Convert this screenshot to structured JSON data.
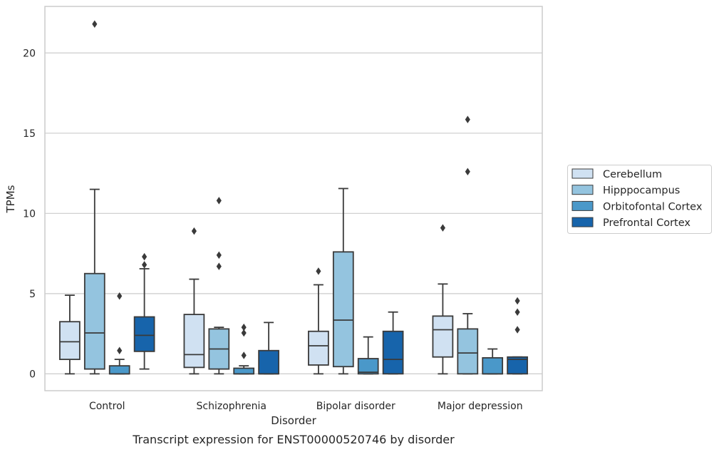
{
  "chart_data": {
    "type": "box",
    "caption": "Transcript expression for ENST00000520746 by disorder",
    "xlabel": "Disorder",
    "ylabel": "TPMs",
    "ylim": [
      -1.05,
      22.9
    ],
    "yticks": [
      0,
      5,
      10,
      15,
      20
    ],
    "grid": "horizontal",
    "legend_position": "right",
    "categories": [
      "Control",
      "Schizophrenia",
      "Bipolar disorder",
      "Major depression"
    ],
    "series": [
      {
        "name": "Cerebellum",
        "color": "#d0e1f2",
        "boxes": [
          {
            "whislo": 0,
            "q1": 0.9,
            "med": 2.0,
            "q3": 3.25,
            "whishi": 4.9,
            "fliers": []
          },
          {
            "whislo": 0,
            "q1": 0.4,
            "med": 1.2,
            "q3": 3.7,
            "whishi": 5.9,
            "fliers": [
              8.9
            ]
          },
          {
            "whislo": 0,
            "q1": 0.55,
            "med": 1.75,
            "q3": 2.65,
            "whishi": 5.55,
            "fliers": [
              6.4
            ]
          },
          {
            "whislo": 0,
            "q1": 1.05,
            "med": 2.75,
            "q3": 3.6,
            "whishi": 5.6,
            "fliers": [
              9.1
            ]
          }
        ]
      },
      {
        "name": "Hipppocampus",
        "color": "#94c4df",
        "boxes": [
          {
            "whislo": 0,
            "q1": 0.3,
            "med": 2.55,
            "q3": 6.25,
            "whishi": 11.5,
            "fliers": [
              21.8
            ]
          },
          {
            "whislo": 0,
            "q1": 0.3,
            "med": 1.55,
            "q3": 2.8,
            "whishi": 2.9,
            "fliers": [
              6.7,
              7.4,
              10.8
            ]
          },
          {
            "whislo": 0,
            "q1": 0.45,
            "med": 3.35,
            "q3": 7.6,
            "whishi": 11.55,
            "fliers": []
          },
          {
            "whislo": 0,
            "q1": 0.0,
            "med": 1.3,
            "q3": 2.8,
            "whishi": 3.75,
            "fliers": [
              12.6,
              15.85
            ]
          }
        ]
      },
      {
        "name": "Orbitofontal Cortex",
        "color": "#4a98c9",
        "boxes": [
          {
            "whislo": 0,
            "q1": 0.0,
            "med": 0.0,
            "q3": 0.5,
            "whishi": 0.9,
            "fliers": [
              1.45,
              4.85
            ]
          },
          {
            "whislo": 0,
            "q1": 0.0,
            "med": 0.0,
            "q3": 0.35,
            "whishi": 0.5,
            "fliers": [
              1.15,
              2.55,
              2.9
            ]
          },
          {
            "whislo": 0,
            "q1": 0.0,
            "med": 0.1,
            "q3": 0.95,
            "whishi": 2.3,
            "fliers": []
          },
          {
            "whislo": 0,
            "q1": 0.0,
            "med": 0.0,
            "q3": 1.0,
            "whishi": 1.55,
            "fliers": []
          }
        ]
      },
      {
        "name": "Prefrontal Cortex",
        "color": "#1764ab",
        "boxes": [
          {
            "whislo": 0.3,
            "q1": 1.4,
            "med": 2.4,
            "q3": 3.55,
            "whishi": 6.55,
            "fliers": [
              6.8,
              7.3
            ]
          },
          {
            "whislo": 0,
            "q1": 0.0,
            "med": 0.0,
            "q3": 1.45,
            "whishi": 3.2,
            "fliers": []
          },
          {
            "whislo": 0,
            "q1": 0.0,
            "med": 0.9,
            "q3": 2.65,
            "whishi": 3.85,
            "fliers": []
          },
          {
            "whislo": 0,
            "q1": 0.0,
            "med": 0.9,
            "q3": 1.05,
            "whishi": 1.05,
            "fliers": [
              2.75,
              3.85,
              4.55
            ]
          }
        ]
      }
    ]
  }
}
